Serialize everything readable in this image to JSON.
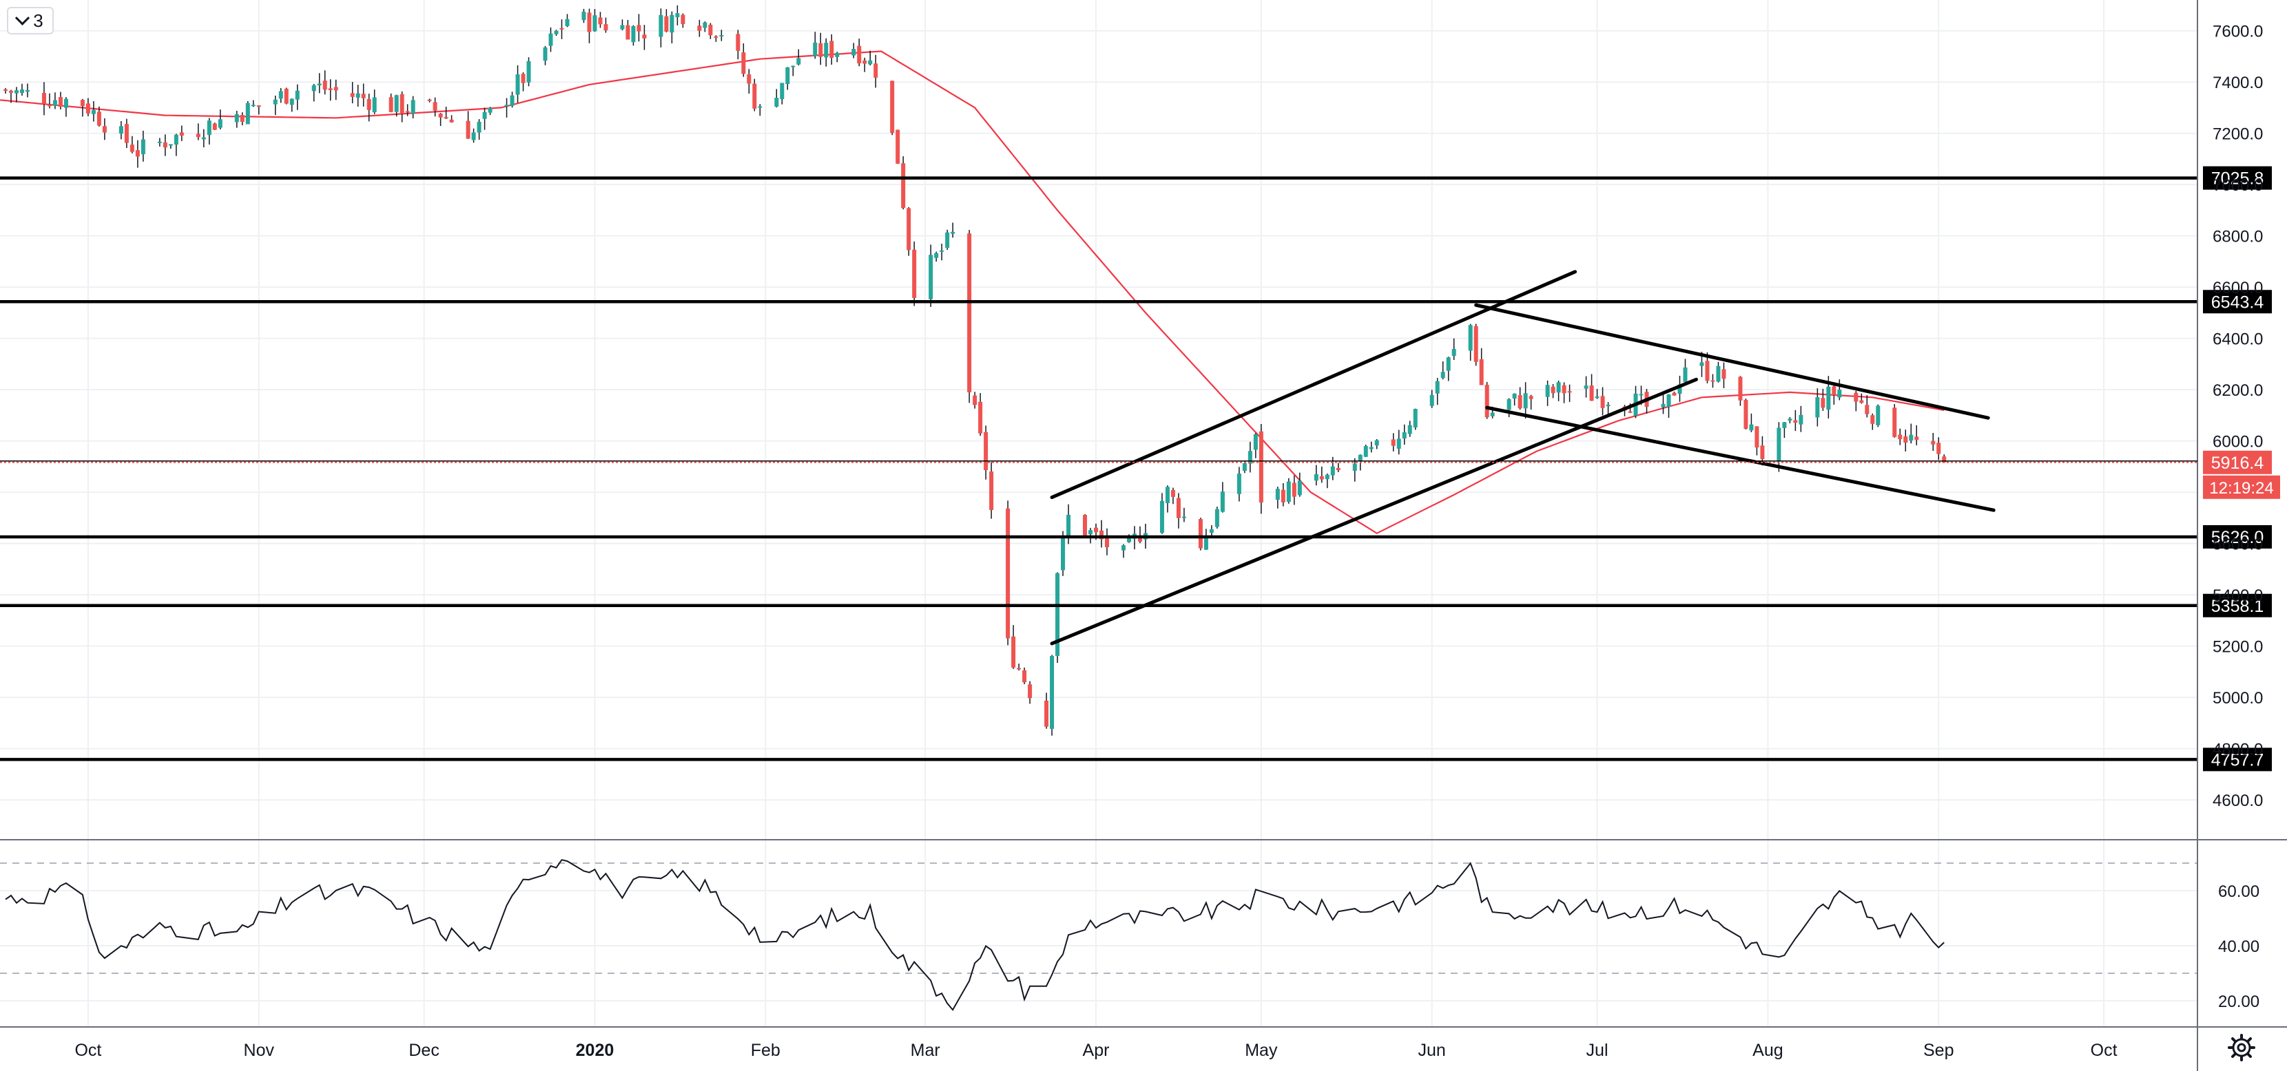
{
  "toolbar": {
    "interval_label": "3"
  },
  "icons": {
    "interval": "chevron-down-icon",
    "settings": "gear-icon"
  },
  "colors": {
    "up": "#26a69a",
    "down": "#ef5350",
    "ma": "#f23645",
    "rsi": "#131722",
    "levels": "#000000",
    "price_tag": "#ef5350",
    "grid": "#eef0f3",
    "axis_text": "#131722"
  },
  "chart_data": [
    {
      "type": "candlestick",
      "title": "",
      "x_axis": {
        "type": "date",
        "range": [
          "2019-09-15",
          "2020-10-18"
        ],
        "labels": [
          "Oct",
          "Nov",
          "Dec",
          "2020",
          "Feb",
          "Mar",
          "Apr",
          "May",
          "Jun",
          "Jul",
          "Aug",
          "Sep",
          "Oct"
        ],
        "label_dates": [
          "2019-10-01",
          "2019-11-01",
          "2019-12-01",
          "2020-01-01",
          "2020-02-01",
          "2020-03-01",
          "2020-04-01",
          "2020-05-01",
          "2020-06-01",
          "2020-07-01",
          "2020-08-01",
          "2020-09-01",
          "2020-10-01"
        ]
      },
      "y_axis": {
        "range": [
          4450,
          7720
        ],
        "ticks": [
          4600,
          4800,
          5000,
          5200,
          5400,
          5600,
          5800,
          6000,
          6200,
          6400,
          6600,
          6800,
          7000,
          7200,
          7400,
          7600
        ],
        "tick_labels": [
          "4600.0",
          "4800.0",
          "5000.0",
          "5200.0",
          "5400.0",
          "5600.0",
          "5800.0",
          "6000.0",
          "6200.0",
          "6400.0",
          "6600.0",
          "6800.0",
          "7000.0",
          "7200.0",
          "7400.0",
          "7600.0"
        ],
        "hidden_ticks": [
          4800,
          5400,
          5600,
          6600,
          6800,
          7000
        ]
      },
      "grid": true,
      "price_anchors": [
        [
          "2019-09-15",
          7370
        ],
        [
          "2019-09-30",
          7320
        ],
        [
          "2019-10-10",
          7130
        ],
        [
          "2019-10-31",
          7300
        ],
        [
          "2019-11-10",
          7390
        ],
        [
          "2019-11-25",
          7310
        ],
        [
          "2019-12-03",
          7290
        ],
        [
          "2019-12-10",
          7200
        ],
        [
          "2019-12-20",
          7440
        ],
        [
          "2019-12-27",
          7650
        ],
        [
          "2020-01-10",
          7600
        ],
        [
          "2020-01-17",
          7670
        ],
        [
          "2020-01-25",
          7590
        ],
        [
          "2020-01-31",
          7280
        ],
        [
          "2020-02-07",
          7500
        ],
        [
          "2020-02-17",
          7540
        ],
        [
          "2020-02-21",
          7450
        ],
        [
          "2020-02-25",
          7100
        ],
        [
          "2020-02-28",
          6600
        ],
        [
          "2020-03-06",
          6800
        ],
        [
          "2020-03-09",
          6200
        ],
        [
          "2020-03-12",
          5900
        ],
        [
          "2020-03-16",
          5200
        ],
        [
          "2020-03-23",
          4900
        ],
        [
          "2020-03-25",
          5500
        ],
        [
          "2020-03-27",
          5700
        ],
        [
          "2020-04-06",
          5550
        ],
        [
          "2020-04-14",
          5800
        ],
        [
          "2020-04-20",
          5600
        ],
        [
          "2020-04-30",
          6000
        ],
        [
          "2020-05-01",
          5780
        ],
        [
          "2020-05-13",
          5850
        ],
        [
          "2020-05-25",
          6000
        ],
        [
          "2020-06-01",
          6200
        ],
        [
          "2020-06-08",
          6450
        ],
        [
          "2020-06-11",
          6100
        ],
        [
          "2020-06-15",
          6150
        ],
        [
          "2020-06-25",
          6200
        ],
        [
          "2020-07-08",
          6150
        ],
        [
          "2020-07-13",
          6100
        ],
        [
          "2020-07-17",
          6300
        ],
        [
          "2020-07-24",
          6250
        ],
        [
          "2020-07-31",
          5950
        ],
        [
          "2020-08-10",
          6150
        ],
        [
          "2020-08-14",
          6200
        ],
        [
          "2020-08-24",
          6050
        ],
        [
          "2020-09-02",
          5916.4
        ]
      ],
      "moving_average": [
        [
          "2019-09-15",
          7330
        ],
        [
          "2019-10-15",
          7270
        ],
        [
          "2019-11-15",
          7260
        ],
        [
          "2019-12-15",
          7300
        ],
        [
          "2019-12-31",
          7390
        ],
        [
          "2020-01-31",
          7490
        ],
        [
          "2020-02-22",
          7520
        ],
        [
          "2020-03-10",
          7300
        ],
        [
          "2020-03-25",
          6900
        ],
        [
          "2020-04-10",
          6500
        ],
        [
          "2020-04-25",
          6150
        ],
        [
          "2020-05-10",
          5800
        ],
        [
          "2020-05-22",
          5640
        ],
        [
          "2020-06-05",
          5790
        ],
        [
          "2020-06-20",
          5960
        ],
        [
          "2020-07-05",
          6080
        ],
        [
          "2020-07-20",
          6170
        ],
        [
          "2020-08-05",
          6190
        ],
        [
          "2020-08-20",
          6170
        ],
        [
          "2020-09-02",
          6120
        ]
      ],
      "horizontal_levels": [
        {
          "value": 7025.8,
          "label": "7025.8"
        },
        {
          "value": 6543.4,
          "label": "6543.4"
        },
        {
          "value": 5626.0,
          "label": "5626.0"
        },
        {
          "value": 5358.1,
          "label": "5358.1"
        },
        {
          "value": 4757.7,
          "label": "4757.7"
        }
      ],
      "trend_lines": [
        {
          "from": [
            "2020-03-24",
            5780
          ],
          "to": [
            "2020-06-27",
            6660
          ]
        },
        {
          "from": [
            "2020-03-24",
            5210
          ],
          "to": [
            "2020-07-19",
            6240
          ]
        },
        {
          "from": [
            "2020-06-09",
            6530
          ],
          "to": [
            "2020-09-10",
            6090
          ]
        },
        {
          "from": [
            "2020-06-11",
            6130
          ],
          "to": [
            "2020-09-11",
            5730
          ]
        }
      ],
      "last_price": {
        "value": 5916.4,
        "label": "5916.4",
        "countdown": "12:19:24"
      }
    },
    {
      "type": "line",
      "title": "",
      "y_axis": {
        "range": [
          11,
          78
        ],
        "ticks": [
          20,
          40,
          60
        ],
        "tick_labels": [
          "20.00",
          "40.00",
          "60.00"
        ],
        "bands": [
          30,
          70
        ]
      },
      "rsi_anchors": [
        [
          "2019-09-15",
          57
        ],
        [
          "2019-09-30",
          60
        ],
        [
          "2019-10-03",
          36
        ],
        [
          "2019-10-15",
          47
        ],
        [
          "2019-10-28",
          44
        ],
        [
          "2019-11-08",
          58
        ],
        [
          "2019-11-20",
          60
        ],
        [
          "2019-12-05",
          45
        ],
        [
          "2019-12-12",
          38
        ],
        [
          "2019-12-20",
          66
        ],
        [
          "2019-12-28",
          74
        ],
        [
          "2020-01-05",
          60
        ],
        [
          "2020-01-18",
          66
        ],
        [
          "2020-01-25",
          55
        ],
        [
          "2020-02-02",
          40
        ],
        [
          "2020-02-12",
          50
        ],
        [
          "2020-02-20",
          52
        ],
        [
          "2020-02-26",
          35
        ],
        [
          "2020-03-06",
          20
        ],
        [
          "2020-03-12",
          38
        ],
        [
          "2020-03-19",
          24
        ],
        [
          "2020-03-24",
          28
        ],
        [
          "2020-03-28",
          48
        ],
        [
          "2020-04-10",
          50
        ],
        [
          "2020-04-25",
          53
        ],
        [
          "2020-05-01",
          58
        ],
        [
          "2020-05-15",
          52
        ],
        [
          "2020-05-30",
          57
        ],
        [
          "2020-06-08",
          68
        ],
        [
          "2020-06-12",
          50
        ],
        [
          "2020-06-22",
          55
        ],
        [
          "2020-07-05",
          52
        ],
        [
          "2020-07-18",
          55
        ],
        [
          "2020-07-31",
          38
        ],
        [
          "2020-08-04",
          35
        ],
        [
          "2020-08-10",
          52
        ],
        [
          "2020-08-14",
          58
        ],
        [
          "2020-08-24",
          45
        ],
        [
          "2020-08-27",
          50
        ],
        [
          "2020-09-02",
          38
        ]
      ]
    }
  ]
}
